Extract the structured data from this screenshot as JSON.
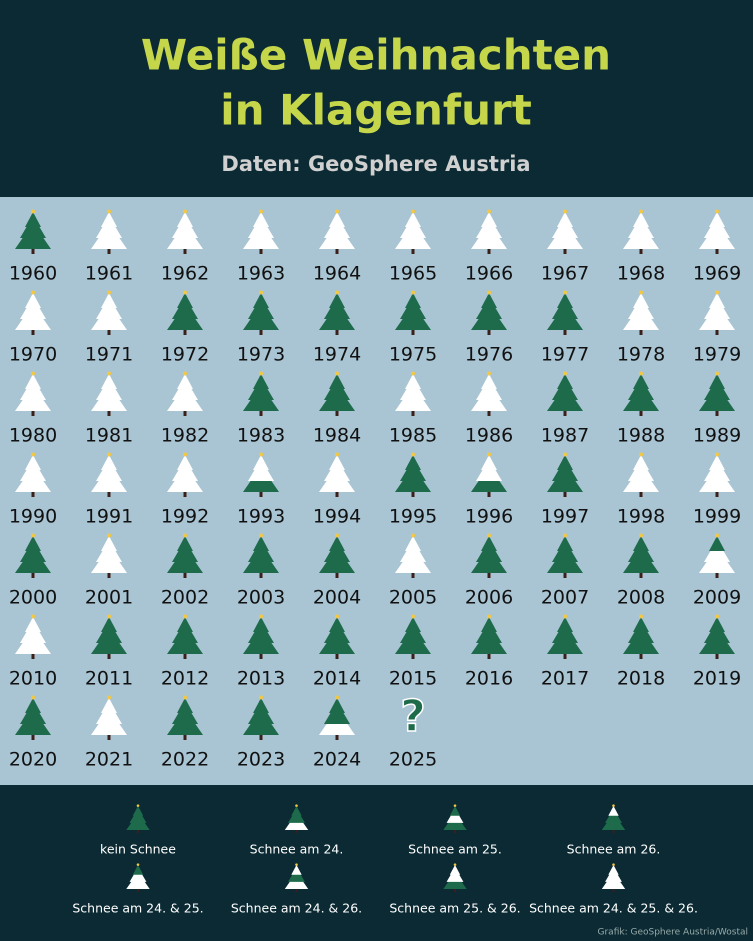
{
  "header": {
    "title_lines": [
      "Weiße Weihnachten",
      "in Klagenfurt"
    ],
    "source": "Daten: GeoSphere Austria"
  },
  "years": [
    {
      "label": "1960",
      "snow": []
    },
    {
      "label": "1961",
      "snow": [
        24,
        25,
        26
      ]
    },
    {
      "label": "1962",
      "snow": [
        24,
        25,
        26
      ]
    },
    {
      "label": "1963",
      "snow": [
        24,
        25,
        26
      ]
    },
    {
      "label": "1964",
      "snow": [
        24,
        25,
        26
      ]
    },
    {
      "label": "1965",
      "snow": [
        24,
        25,
        26
      ]
    },
    {
      "label": "1966",
      "snow": [
        24,
        25,
        26
      ]
    },
    {
      "label": "1967",
      "snow": [
        24,
        25,
        26
      ]
    },
    {
      "label": "1968",
      "snow": [
        24,
        25,
        26
      ]
    },
    {
      "label": "1969",
      "snow": [
        24,
        25,
        26
      ]
    },
    {
      "label": "1970",
      "snow": [
        24,
        25,
        26
      ]
    },
    {
      "label": "1971",
      "snow": [
        24,
        25,
        26
      ]
    },
    {
      "label": "1972",
      "snow": []
    },
    {
      "label": "1973",
      "snow": []
    },
    {
      "label": "1974",
      "snow": []
    },
    {
      "label": "1975",
      "snow": []
    },
    {
      "label": "1976",
      "snow": []
    },
    {
      "label": "1977",
      "snow": []
    },
    {
      "label": "1978",
      "snow": [
        24,
        25,
        26
      ]
    },
    {
      "label": "1979",
      "snow": [
        24,
        25,
        26
      ]
    },
    {
      "label": "1980",
      "snow": [
        24,
        25,
        26
      ]
    },
    {
      "label": "1981",
      "snow": [
        24,
        25,
        26
      ]
    },
    {
      "label": "1982",
      "snow": [
        24,
        25,
        26
      ]
    },
    {
      "label": "1983",
      "snow": []
    },
    {
      "label": "1984",
      "snow": []
    },
    {
      "label": "1985",
      "snow": [
        24,
        25,
        26
      ]
    },
    {
      "label": "1986",
      "snow": [
        24,
        25,
        26
      ]
    },
    {
      "label": "1987",
      "snow": []
    },
    {
      "label": "1988",
      "snow": []
    },
    {
      "label": "1989",
      "snow": []
    },
    {
      "label": "1990",
      "snow": [
        24,
        25,
        26
      ]
    },
    {
      "label": "1991",
      "snow": [
        24,
        25,
        26
      ]
    },
    {
      "label": "1992",
      "snow": [
        24,
        25,
        26
      ]
    },
    {
      "label": "1993",
      "snow": [
        25,
        26
      ]
    },
    {
      "label": "1994",
      "snow": [
        24,
        25,
        26
      ]
    },
    {
      "label": "1995",
      "snow": []
    },
    {
      "label": "1996",
      "snow": [
        25,
        26
      ]
    },
    {
      "label": "1997",
      "snow": []
    },
    {
      "label": "1998",
      "snow": [
        24,
        25,
        26
      ]
    },
    {
      "label": "1999",
      "snow": [
        24,
        25,
        26
      ]
    },
    {
      "label": "2000",
      "snow": []
    },
    {
      "label": "2001",
      "snow": [
        24,
        25,
        26
      ]
    },
    {
      "label": "2002",
      "snow": []
    },
    {
      "label": "2003",
      "snow": []
    },
    {
      "label": "2004",
      "snow": []
    },
    {
      "label": "2005",
      "snow": [
        24,
        25,
        26
      ]
    },
    {
      "label": "2006",
      "snow": []
    },
    {
      "label": "2007",
      "snow": []
    },
    {
      "label": "2008",
      "snow": []
    },
    {
      "label": "2009",
      "snow": [
        24,
        25
      ]
    },
    {
      "label": "2010",
      "snow": [
        24,
        25,
        26
      ]
    },
    {
      "label": "2011",
      "snow": []
    },
    {
      "label": "2012",
      "snow": []
    },
    {
      "label": "2013",
      "snow": []
    },
    {
      "label": "2014",
      "snow": []
    },
    {
      "label": "2015",
      "snow": []
    },
    {
      "label": "2016",
      "snow": []
    },
    {
      "label": "2017",
      "snow": []
    },
    {
      "label": "2018",
      "snow": []
    },
    {
      "label": "2019",
      "snow": []
    },
    {
      "label": "2020",
      "snow": []
    },
    {
      "label": "2021",
      "snow": [
        24,
        25,
        26
      ]
    },
    {
      "label": "2022",
      "snow": []
    },
    {
      "label": "2023",
      "snow": []
    },
    {
      "label": "2024",
      "snow": [
        24
      ]
    },
    {
      "label": "2025",
      "snow": null,
      "mark": "?"
    }
  ],
  "legend": [
    {
      "label": "kein Schnee",
      "snow": []
    },
    {
      "label": "Schnee am 24.",
      "snow": [
        24
      ]
    },
    {
      "label": "Schnee am 25.",
      "snow": [
        25
      ]
    },
    {
      "label": "Schnee am 26.",
      "snow": [
        26
      ]
    },
    {
      "label": "Schnee am 24. & 25.",
      "snow": [
        24,
        25
      ]
    },
    {
      "label": "Schnee am 24. & 26.",
      "snow": [
        24,
        26
      ]
    },
    {
      "label": "Schnee am 25. & 26.",
      "snow": [
        25,
        26
      ]
    },
    {
      "label": "Schnee am 24. & 25. & 26.",
      "snow": [
        24,
        25,
        26
      ]
    }
  ],
  "credit": "Grafik: GeoSphere Austria/Wostal"
}
